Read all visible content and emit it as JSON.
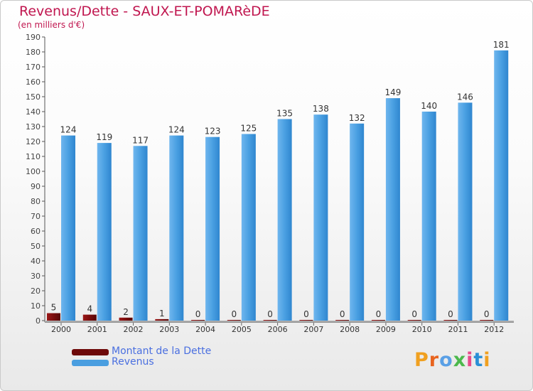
{
  "title": "Revenus/Dette - SAUX-ET-POMARèDE",
  "subtitle": "(en milliers d'€)",
  "legend": [
    {
      "label": "Montant de la Dette",
      "color": "#6e0a0a"
    },
    {
      "label": "Revenus",
      "color": "#4a9ee0"
    }
  ],
  "logo_text": "Proxiti",
  "chart_data": {
    "type": "bar",
    "categories": [
      "2000",
      "2001",
      "2002",
      "2003",
      "2004",
      "2005",
      "2006",
      "2007",
      "2008",
      "2009",
      "2010",
      "2011",
      "2012"
    ],
    "series": [
      {
        "name": "Montant de la Dette",
        "values": [
          5,
          4,
          2,
          1,
          0,
          0,
          0,
          0,
          0,
          0,
          0,
          0,
          0
        ],
        "color": "#7a0c0c"
      },
      {
        "name": "Revenus",
        "values": [
          124,
          119,
          117,
          124,
          123,
          125,
          135,
          138,
          132,
          149,
          140,
          146,
          181
        ],
        "color": "#4a9ee0"
      }
    ],
    "yticks": [
      0,
      10,
      20,
      30,
      40,
      50,
      60,
      70,
      80,
      90,
      100,
      110,
      120,
      130,
      140,
      150,
      160,
      170,
      180,
      190
    ],
    "ylim": [
      0,
      190
    ],
    "grid": false
  }
}
